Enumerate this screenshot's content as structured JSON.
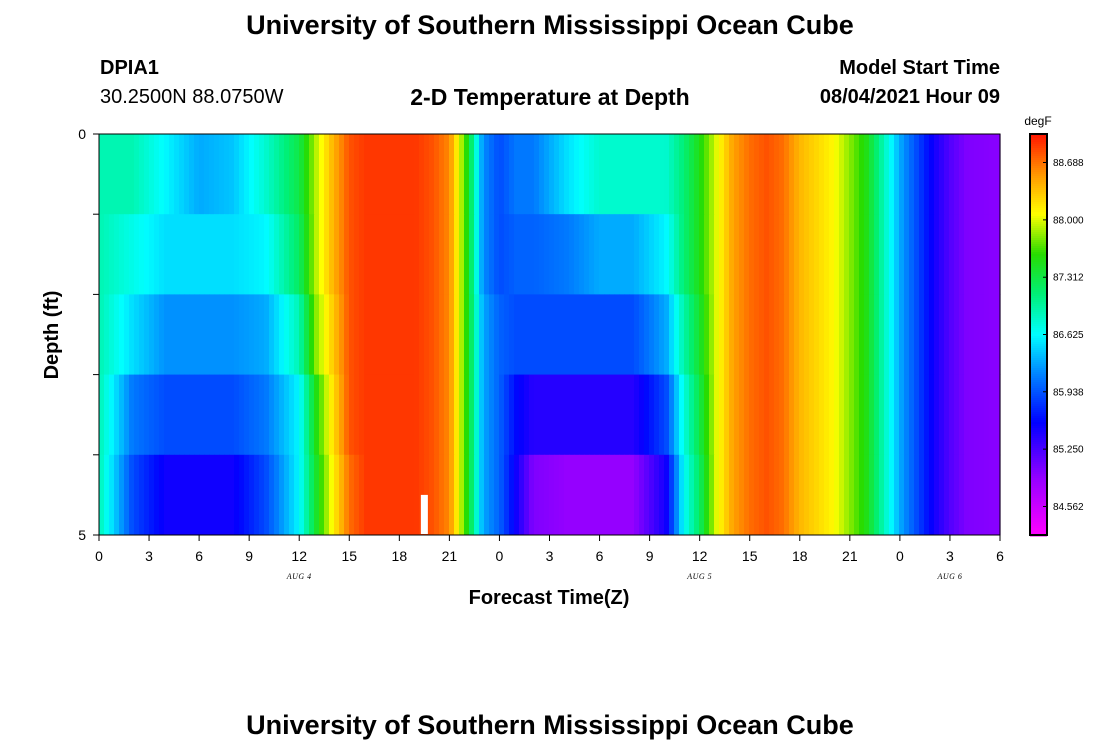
{
  "header": {
    "title_top": "University of Southern Mississippi Ocean Cube",
    "title_bottom": "University of Southern Mississippi Ocean Cube",
    "station": "DPIA1",
    "coords": "30.2500N  88.0750W",
    "plot_title": "2-D Temperature at Depth",
    "model_label": "Model Start Time",
    "model_time": "08/04/2021 Hour 09"
  },
  "chart_data": {
    "type": "heatmap",
    "title": "2-D Temperature at Depth",
    "xlabel": "Forecast Time(Z)",
    "ylabel": "Depth (ft)",
    "units": "degF",
    "xlim": [
      0,
      54
    ],
    "ylim": [
      5,
      0
    ],
    "x_tick_labels": [
      "0",
      "3",
      "6",
      "9",
      "12",
      "15",
      "18",
      "21",
      "0",
      "3",
      "6",
      "9",
      "12",
      "15",
      "18",
      "21",
      "0",
      "3",
      "6"
    ],
    "y_tick_labels": [
      "0",
      "5"
    ],
    "date_labels": [
      {
        "label": "AUG 4",
        "hour": 12
      },
      {
        "label": "AUG 5",
        "hour": 36
      },
      {
        "label": "AUG 6",
        "hour": 51
      }
    ],
    "colorbar": {
      "label": "degF",
      "min": 84.22,
      "max": 89.03,
      "ticks": [
        "88.688",
        "88.000",
        "87.312",
        "86.625",
        "85.938",
        "85.250",
        "84.562"
      ]
    },
    "current_time_marker_hour": 19.5,
    "depth_layers": [
      0,
      1,
      2,
      3,
      4,
      5
    ],
    "time_hours": [
      0,
      2,
      4,
      6,
      8,
      10,
      12,
      13,
      14,
      15,
      16,
      17,
      18,
      19,
      20,
      21,
      22,
      23,
      24,
      25,
      26,
      28,
      30,
      32,
      34,
      35,
      36,
      37,
      38,
      39,
      40,
      41,
      42,
      44,
      46,
      48,
      50,
      51,
      52,
      54
    ],
    "temperature_degF": [
      [
        86.9,
        86.9,
        86.6,
        86.3,
        86.4,
        86.8,
        87.3,
        87.9,
        88.4,
        88.8,
        88.9,
        88.9,
        88.9,
        88.9,
        88.8,
        88.6,
        87.6,
        86.2,
        85.9,
        86.1,
        86.1,
        86.5,
        86.8,
        86.8,
        86.8,
        87.1,
        87.5,
        88.0,
        88.5,
        88.7,
        88.8,
        88.7,
        88.4,
        88.1,
        87.5,
        86.3,
        85.5,
        85.2,
        85.0,
        84.95
      ],
      [
        86.9,
        86.7,
        86.5,
        86.5,
        86.5,
        86.6,
        87.2,
        87.9,
        88.4,
        88.8,
        88.9,
        88.9,
        88.9,
        88.9,
        88.8,
        88.6,
        87.6,
        86.2,
        85.9,
        86.0,
        86.0,
        86.1,
        86.3,
        86.3,
        86.6,
        87.1,
        87.5,
        88.0,
        88.5,
        88.7,
        88.8,
        88.7,
        88.4,
        88.1,
        87.5,
        86.3,
        85.5,
        85.2,
        85.0,
        84.95
      ],
      [
        86.9,
        86.5,
        86.2,
        86.2,
        86.2,
        86.3,
        86.9,
        87.8,
        88.3,
        88.8,
        88.9,
        88.9,
        88.9,
        88.9,
        88.8,
        88.6,
        87.6,
        86.3,
        86.0,
        85.9,
        85.9,
        85.9,
        85.9,
        85.9,
        86.3,
        86.9,
        87.4,
        88.0,
        88.5,
        88.7,
        88.8,
        88.7,
        88.4,
        88.1,
        87.5,
        86.3,
        85.5,
        85.2,
        85.0,
        84.95
      ],
      [
        86.9,
        86.1,
        85.9,
        85.9,
        85.9,
        86.1,
        86.6,
        87.5,
        88.2,
        88.8,
        88.9,
        88.9,
        88.9,
        88.9,
        88.8,
        88.6,
        87.6,
        86.3,
        86.0,
        85.6,
        85.4,
        85.4,
        85.4,
        85.4,
        85.9,
        86.7,
        87.3,
        88.0,
        88.5,
        88.7,
        88.8,
        88.7,
        88.4,
        88.1,
        87.5,
        86.3,
        85.5,
        85.2,
        85.0,
        84.95
      ],
      [
        86.9,
        85.9,
        85.5,
        85.5,
        85.5,
        85.9,
        86.6,
        87.4,
        88.1,
        88.7,
        88.9,
        88.9,
        88.9,
        88.9,
        88.8,
        88.6,
        87.6,
        86.3,
        86.0,
        85.5,
        85.0,
        84.9,
        84.9,
        84.9,
        85.5,
        86.6,
        87.2,
        88.0,
        88.5,
        88.7,
        88.8,
        88.7,
        88.4,
        88.1,
        87.5,
        86.3,
        85.5,
        85.2,
        85.0,
        84.95
      ],
      [
        86.9,
        85.9,
        85.2,
        85.0,
        85.0,
        85.7,
        86.5,
        87.3,
        88.0,
        88.7,
        88.9,
        88.9,
        88.9,
        88.9,
        88.8,
        88.6,
        87.6,
        86.3,
        86.0,
        85.4,
        84.7,
        84.4,
        84.3,
        84.4,
        85.1,
        86.3,
        87.2,
        88.0,
        88.5,
        88.7,
        88.8,
        88.7,
        88.4,
        88.1,
        87.5,
        86.3,
        85.5,
        85.2,
        85.0,
        84.95
      ]
    ]
  }
}
